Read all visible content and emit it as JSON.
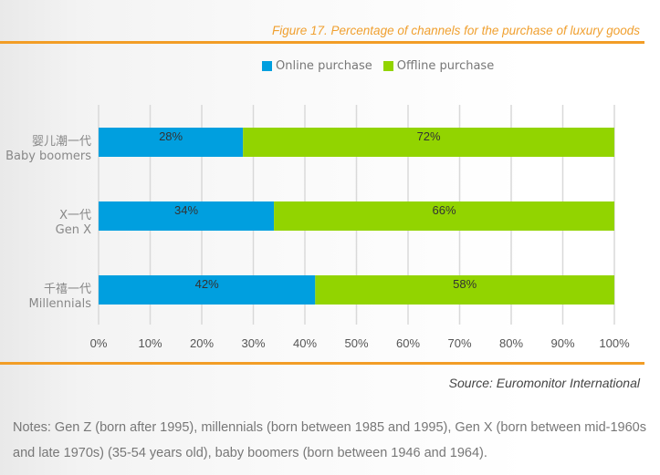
{
  "chart_data": {
    "type": "bar",
    "orientation": "horizontal",
    "stacked": true,
    "title": "Figure 17. Percentage of channels for the purchase of luxury goods",
    "categories": [
      {
        "zh": "婴儿潮一代",
        "en": "Baby boomers"
      },
      {
        "zh": "X一代",
        "en": "Gen X"
      },
      {
        "zh": "千禧一代",
        "en": "Millennials"
      }
    ],
    "series": [
      {
        "name": "Online purchase",
        "color": "#009fdf",
        "values": [
          28,
          34,
          42
        ],
        "labels": [
          "28%",
          "34%",
          "42%"
        ]
      },
      {
        "name": "Offline purchase",
        "color": "#92d400",
        "values": [
          72,
          66,
          58
        ],
        "labels": [
          "72%",
          "66%",
          "58%"
        ]
      }
    ],
    "xlim": [
      0,
      100
    ],
    "xticks": [
      "0%",
      "10%",
      "20%",
      "30%",
      "40%",
      "50%",
      "60%",
      "70%",
      "80%",
      "90%",
      "100%"
    ],
    "grid": true,
    "legend": "top-center"
  },
  "source": "Source: Euromonitor International",
  "notes": "Notes: Gen Z (born after 1995), millennials (born between 1985 and 1995), Gen X (born between mid-1960s and late 1970s) (35-54 years old), baby boomers (born between 1946 and 1964)."
}
